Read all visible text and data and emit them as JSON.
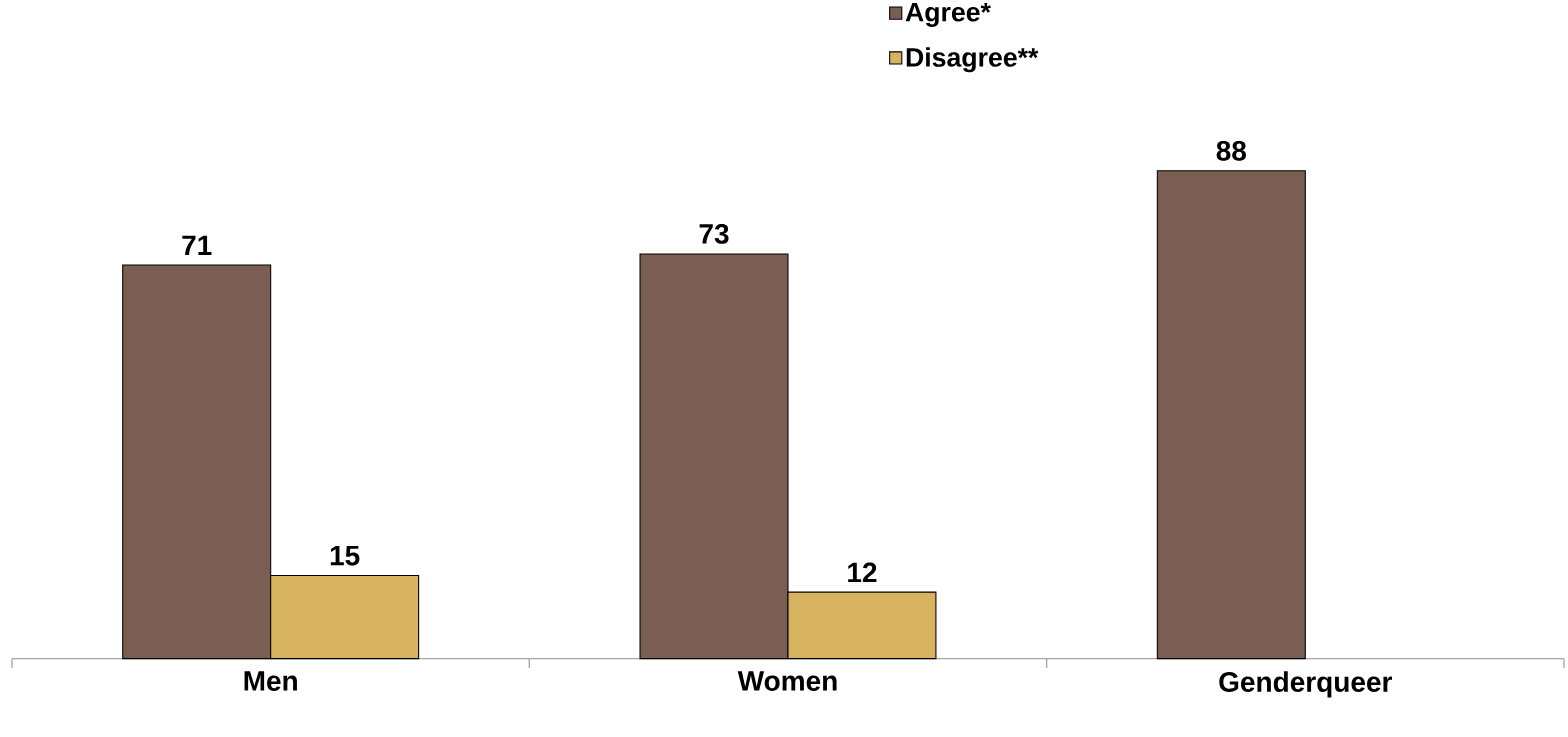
{
  "chart_data": {
    "type": "bar",
    "categories": [
      "Men",
      "Women",
      "Genderqueer"
    ],
    "series": [
      {
        "name": "Agree*",
        "color": "#7a5e54",
        "values": [
          71,
          73,
          88
        ]
      },
      {
        "name": "Disagree**",
        "color": "#d8b35f",
        "values": [
          15,
          12,
          null
        ]
      }
    ],
    "data_labels": true,
    "legend": "top"
  }
}
